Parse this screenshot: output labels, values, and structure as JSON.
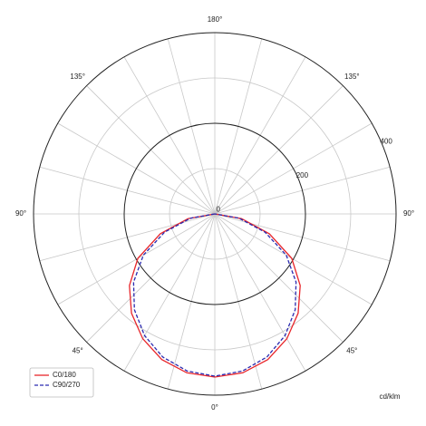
{
  "chart_data": {
    "type": "polar",
    "x": [
      -90,
      -80,
      -70,
      -60,
      -50,
      -40,
      -30,
      -20,
      -10,
      0,
      10,
      20,
      30,
      40,
      50,
      60,
      70,
      80,
      90
    ],
    "series": [
      {
        "name": "C0/180",
        "color": "#e8262b",
        "linestyle": "solid",
        "values": [
          0,
          60,
          128,
          196,
          246,
          286,
          318,
          342,
          356,
          360,
          356,
          342,
          318,
          286,
          246,
          196,
          128,
          60,
          0
        ]
      },
      {
        "name": "C90/270",
        "color": "#2a2ab0",
        "linestyle": "dashed",
        "values": [
          0,
          54,
          118,
          182,
          234,
          276,
          310,
          336,
          352,
          358,
          352,
          336,
          310,
          276,
          234,
          182,
          118,
          54,
          0
        ]
      }
    ],
    "rlim": [
      0,
      400
    ],
    "rticks": [
      0,
      200,
      400
    ],
    "rminor": [
      100,
      300
    ],
    "angle_grid": 15,
    "angle_ticks": [
      {
        "value": 180,
        "label": "180°"
      },
      {
        "value": -135,
        "label": "135°"
      },
      {
        "value": 135,
        "label": "135°"
      },
      {
        "value": -90,
        "label": "90°"
      },
      {
        "value": 90,
        "label": "90°"
      },
      {
        "value": -45,
        "label": "45°"
      },
      {
        "value": 45,
        "label": "45°"
      },
      {
        "value": 0,
        "label": "0°"
      }
    ],
    "unit_label": "cd/klm",
    "legend": "lower left"
  }
}
